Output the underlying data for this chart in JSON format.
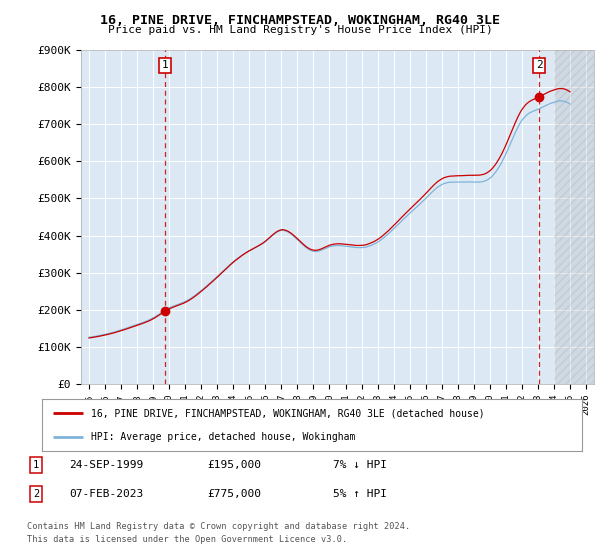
{
  "title": "16, PINE DRIVE, FINCHAMPSTEAD, WOKINGHAM, RG40 3LE",
  "subtitle": "Price paid vs. HM Land Registry's House Price Index (HPI)",
  "legend_line1": "16, PINE DRIVE, FINCHAMPSTEAD, WOKINGHAM, RG40 3LE (detached house)",
  "legend_line2": "HPI: Average price, detached house, Wokingham",
  "footnote1": "Contains HM Land Registry data © Crown copyright and database right 2024.",
  "footnote2": "This data is licensed under the Open Government Licence v3.0.",
  "table_rows": [
    {
      "num": "1",
      "date": "24-SEP-1999",
      "price": "£195,000",
      "hpi": "7% ↓ HPI"
    },
    {
      "num": "2",
      "date": "07-FEB-2023",
      "price": "£775,000",
      "hpi": "5% ↑ HPI"
    }
  ],
  "ylabel_ticks": [
    "£0",
    "£100K",
    "£200K",
    "£300K",
    "£400K",
    "£500K",
    "£600K",
    "£700K",
    "£800K",
    "£900K"
  ],
  "ytick_values": [
    0,
    100000,
    200000,
    300000,
    400000,
    500000,
    600000,
    700000,
    800000,
    900000
  ],
  "xlim": [
    1994.5,
    2026.5
  ],
  "ylim": [
    0,
    900000
  ],
  "plot_bg_color": "#dce9f5",
  "fig_bg_color": "#ffffff",
  "grid_color": "#ffffff",
  "line_color_red": "#cc0000",
  "line_color_blue": "#7fb3d9",
  "sale1_x": 1999.73,
  "sale1_y": 195000,
  "sale2_x": 2023.09,
  "sale2_y": 775000,
  "marker_color": "#cc0000",
  "dashed_color": "#cc0000",
  "hatch_start": 2024.0
}
